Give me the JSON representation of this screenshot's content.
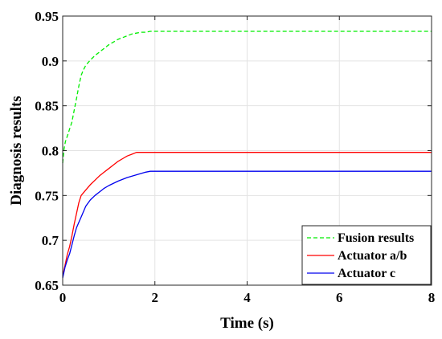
{
  "chart_data": {
    "type": "line",
    "title": "",
    "xlabel": "Time (s)",
    "ylabel": "Diagnosis results",
    "xlim": [
      0,
      8
    ],
    "ylim": [
      0.65,
      0.95
    ],
    "xticks": [
      0,
      2,
      4,
      6,
      8
    ],
    "xtick_labels": [
      "0",
      "2",
      "4",
      "6",
      "8"
    ],
    "yticks": [
      0.65,
      0.7,
      0.75,
      0.8,
      0.85,
      0.9,
      0.95
    ],
    "ytick_labels": [
      "0.65",
      "0.7",
      "0.75",
      "0.8",
      "0.85",
      "0.9",
      "0.95"
    ],
    "grid": true,
    "legend_position": "bottom-right",
    "series": [
      {
        "name": "Fusion results",
        "color": "#00ee00",
        "line_style": "dashed",
        "x": [
          0,
          0.03,
          0.06,
          0.1,
          0.15,
          0.2,
          0.25,
          0.3,
          0.35,
          0.4,
          0.45,
          0.5,
          0.6,
          0.7,
          0.8,
          0.9,
          1.0,
          1.1,
          1.2,
          1.3,
          1.4,
          1.5,
          1.6,
          1.7,
          1.8,
          1.9,
          2.0,
          8.0
        ],
        "y": [
          0.786,
          0.802,
          0.81,
          0.816,
          0.824,
          0.832,
          0.845,
          0.858,
          0.872,
          0.884,
          0.89,
          0.895,
          0.901,
          0.906,
          0.91,
          0.914,
          0.918,
          0.921,
          0.924,
          0.926,
          0.928,
          0.93,
          0.931,
          0.932,
          0.932,
          0.933,
          0.933,
          0.933
        ]
      },
      {
        "name": "Actuator a/b",
        "color": "#ff0000",
        "line_style": "solid",
        "x": [
          0,
          0.05,
          0.1,
          0.15,
          0.2,
          0.25,
          0.3,
          0.35,
          0.4,
          0.5,
          0.6,
          0.7,
          0.8,
          0.9,
          1.0,
          1.1,
          1.2,
          1.3,
          1.4,
          1.5,
          1.6,
          8.0
        ],
        "y": [
          0.66,
          0.672,
          0.684,
          0.693,
          0.705,
          0.718,
          0.73,
          0.742,
          0.75,
          0.756,
          0.762,
          0.767,
          0.772,
          0.776,
          0.78,
          0.784,
          0.788,
          0.791,
          0.794,
          0.796,
          0.798,
          0.798
        ]
      },
      {
        "name": "Actuator c",
        "color": "#0000ee",
        "line_style": "solid",
        "x": [
          0,
          0.05,
          0.1,
          0.15,
          0.2,
          0.25,
          0.3,
          0.35,
          0.4,
          0.5,
          0.6,
          0.7,
          0.8,
          0.9,
          1.0,
          1.2,
          1.4,
          1.6,
          1.8,
          1.9,
          2.0,
          8.0
        ],
        "y": [
          0.658,
          0.67,
          0.678,
          0.685,
          0.695,
          0.705,
          0.714,
          0.72,
          0.726,
          0.738,
          0.745,
          0.75,
          0.754,
          0.758,
          0.761,
          0.766,
          0.77,
          0.773,
          0.776,
          0.777,
          0.777,
          0.777
        ]
      }
    ]
  }
}
